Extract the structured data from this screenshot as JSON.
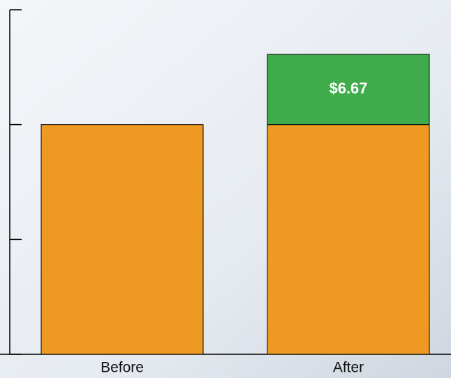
{
  "chart_data": {
    "type": "stacked_bar",
    "categories": [
      "Before",
      "After"
    ],
    "series": [
      {
        "color": "#ee9a22",
        "values": [
          21.8,
          21.8
        ]
      },
      {
        "color": "#3fab4a",
        "values": [
          null,
          6.67
        ],
        "value_labels": [
          null,
          "$6.67"
        ]
      }
    ],
    "ylim": [
      0,
      32.7
    ],
    "yticks": [
      0,
      10.9,
      21.8,
      32.7
    ]
  }
}
